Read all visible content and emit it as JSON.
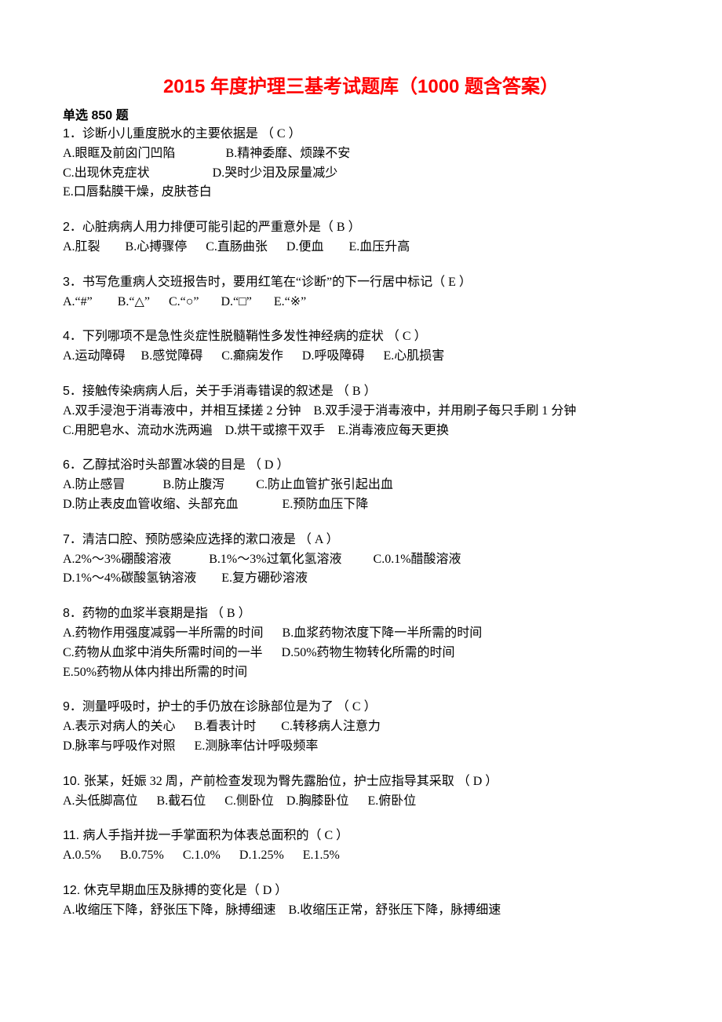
{
  "title": "2015 年度护理三基考试题库（1000 题含答案）",
  "section_header": "单选 850 题",
  "title_color": "#ff0000",
  "text_color": "#000000",
  "background_color": "#ffffff",
  "title_fontsize": 24,
  "body_fontsize": 16,
  "questions": [
    {
      "num": "1．",
      "stem": "诊断小儿重度脱水的主要依据是  （ C ）",
      "option_lines": [
        "A.眼眶及前囟门凹陷                B.精神委靡、烦躁不安",
        "C.出现休克症状                    D.哭时少泪及尿量减少",
        "E.口唇黏膜干燥，皮肤苍白"
      ]
    },
    {
      "num": "2．",
      "stem": "心脏病病人用力排便可能引起的严重意外是（ B ）",
      "option_lines": [
        "A.肛裂        B.心搏骤停      C.直肠曲张      D.便血        E.血压升高"
      ]
    },
    {
      "num": "3．",
      "stem": "书写危重病人交班报告时，要用红笔在“诊断”的下一行居中标记（ E ）",
      "option_lines": [
        "A.“#”        B.“△”      C.“○”       D.“□”       E.“※”"
      ]
    },
    {
      "num": "4．",
      "stem": "下列哪项不是急性炎症性脱髓鞘性多发性神经病的症状    （ C  ）",
      "option_lines": [
        "A.运动障碍     B.感觉障碍      C.癫痫发作      D.呼吸障碍      E.心肌损害"
      ]
    },
    {
      "num": "5．",
      "stem": "接触传染病病人后，关于手消毒错误的叙述是    （ B ）",
      "option_lines": [
        "A.双手浸泡于消毒液中，并相互揉搓 2 分钟    B.双手浸于消毒液中，并用刷子每只手刷 1 分钟",
        "C.用肥皂水、流动水洗两遍    D.烘干或擦干双手    E.消毒液应每天更换"
      ]
    },
    {
      "num": "6．",
      "stem": "乙醇拭浴时头部置冰袋的目是    （ D ）",
      "option_lines": [
        "A.防止感冒            B.防止腹泻          C.防止血管扩张引起出血",
        "D.防止表皮血管收缩、头部充血              E.预防血压下降"
      ]
    },
    {
      "num": "7．",
      "stem": "清洁口腔、预防感染应选择的漱口液是    （ A ）",
      "option_lines": [
        "A.2%～3%硼酸溶液            B.1%～3%过氧化氢溶液          C.0.1%醋酸溶液",
        "D.1%～4%碳酸氢钠溶液        E.复方硼砂溶液"
      ]
    },
    {
      "num": "8．",
      "stem": "药物的血浆半衰期是指    （ B ）",
      "option_lines": [
        "A.药物作用强度减弱一半所需的时间      B.血浆药物浓度下降一半所需的时间",
        "C.药物从血浆中消失所需时间的一半      D.50%药物生物转化所需的时间",
        "E.50%药物从体内排出所需的时间"
      ]
    },
    {
      "num": "9．",
      "stem": "测量呼吸时，护士的手仍放在诊脉部位是为了    （ C  ）",
      "option_lines": [
        "A.表示对病人的关心      B.看表计时        C.转移病人注意力",
        "D.脉率与呼吸作对照      E.测脉率估计呼吸频率"
      ]
    },
    {
      "num": "10. ",
      "stem": "张某，妊娠 32 周，产前检查发现为臀先露胎位，护士应指导其采取  （ D ）",
      "option_lines": [
        "A.头低脚高位      B.截石位      C.侧卧位    D.胸膝卧位      E.俯卧位"
      ]
    },
    {
      "num": "11. ",
      "stem": "病人手指并拢一手掌面积为体表总面积的（ C ）",
      "option_lines": [
        "A.0.5%      B.0.75%      C.1.0%      D.1.25%      E.1.5%"
      ]
    },
    {
      "num": "12. ",
      "stem": "休克早期血压及脉搏的变化是（ D ）",
      "option_lines": [
        "A.收缩压下降，舒张压下降，脉搏细速    B.收缩压正常，舒张压下降，脉搏细速"
      ]
    }
  ]
}
